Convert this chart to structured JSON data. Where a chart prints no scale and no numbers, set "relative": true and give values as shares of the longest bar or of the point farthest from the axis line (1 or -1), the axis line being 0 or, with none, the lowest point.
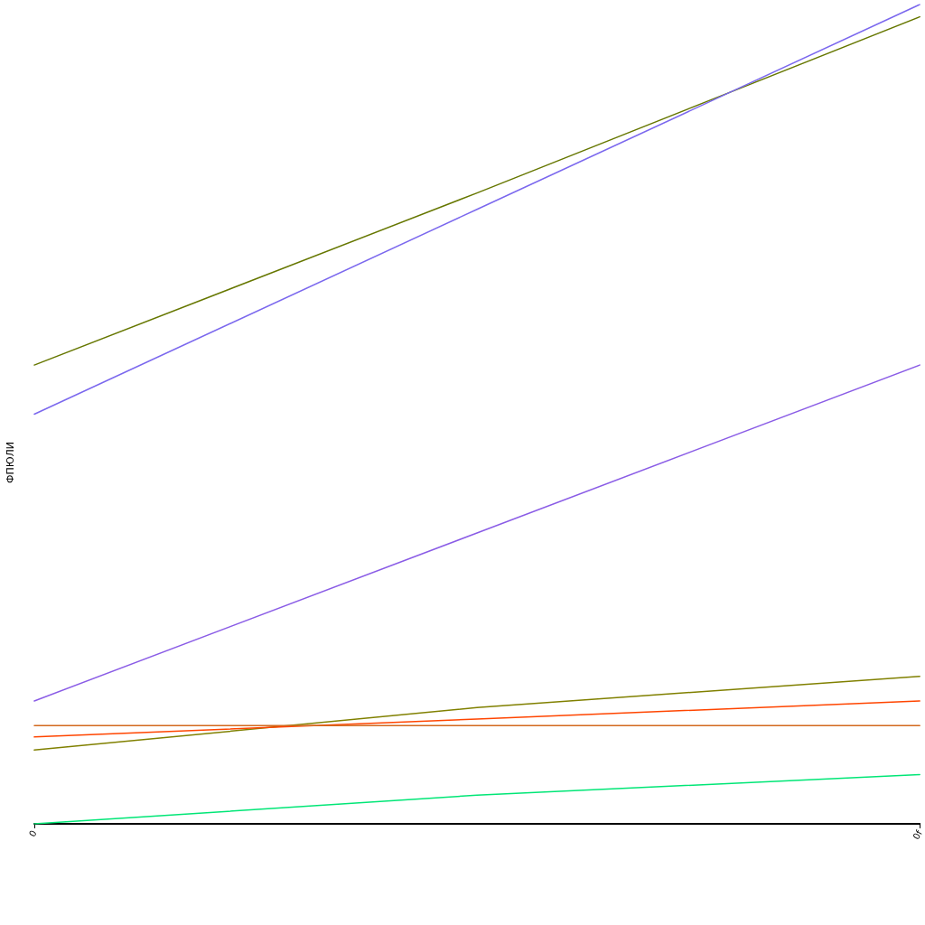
{
  "chart_data": {
    "type": "line",
    "relative": true,
    "ylabel": "ФПЮЛИ",
    "categories": [
      "0",
      null,
      "0f"
    ],
    "series": [
      {
        "color": "#667700",
        "values": [
          0.56,
          0.77,
          0.985
        ]
      },
      {
        "color": "#7b68ee",
        "values": [
          0.5,
          0.75,
          1
        ]
      },
      {
        "color": "#8a5ce6",
        "values": [
          0.15,
          0.355,
          0.56
        ]
      },
      {
        "color": "#808000",
        "values": [
          0.09,
          0.142,
          0.18
        ]
      },
      {
        "color": "#ff4500",
        "values": [
          0.106,
          0.128,
          0.15
        ]
      },
      {
        "color": "#d2691e",
        "values": [
          0.12,
          0.12,
          0.12
        ]
      },
      {
        "color": "#00e676",
        "values": [
          0,
          0.035,
          0.06
        ]
      }
    ],
    "marker": "none",
    "line_style": "solid"
  }
}
